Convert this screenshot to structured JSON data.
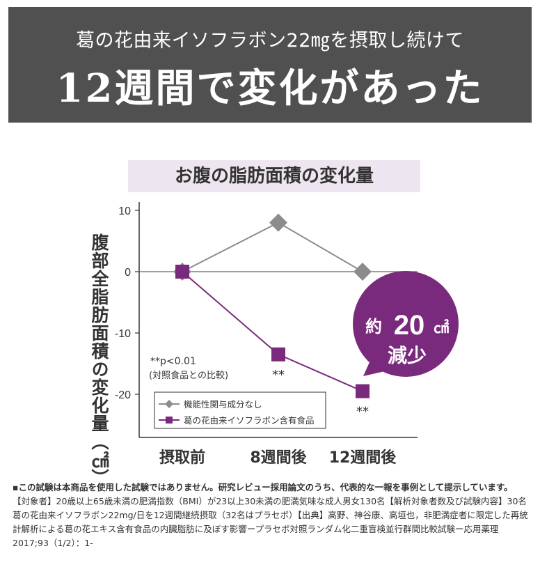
{
  "header": {
    "line1": "葛の花由来イソフラボン22㎎を摂取し続けて",
    "line2": "12週間で変化があった"
  },
  "chart_data": {
    "type": "line",
    "title": "お腹の脂肪面積の変化量",
    "ylabel": "腹部全脂肪面積の変化量（㎠）",
    "categories": [
      "摂取前",
      "8週間後",
      "12週間後"
    ],
    "ylim": [
      -27,
      10
    ],
    "yticks": [
      10,
      0,
      -10,
      -20
    ],
    "series": [
      {
        "name": "機能性関与成分なし",
        "values": [
          0,
          8,
          0
        ],
        "color": "#8c8c8c",
        "marker": "diamond"
      },
      {
        "name": "葛の花由来イソフラボン含有食品",
        "values": [
          0,
          -13.5,
          -19.5
        ],
        "color": "#7a2a7c",
        "marker": "square"
      }
    ],
    "significance": {
      "label": "**",
      "points": [
        1,
        2
      ]
    },
    "note": [
      "**p<0.01",
      "(対照食品との比較)"
    ],
    "callout": {
      "line1": "約",
      "value": "20",
      "unit": "㎠",
      "line2": "減少",
      "color": "#7a2a7c"
    },
    "grid": false,
    "legend_position": "bottom-left"
  },
  "footnote": {
    "lead": "▪この試験は本商品を使用した試験ではありません。研究レビュー採用論文のうち、代表的な一報を事例として提示しています。",
    "body": "【対象者】20歳以上65歳未満の肥満指数（BMI）が23以上30未満の肥満気味な成人男女130名【解析対象者数及び試験内容】30名葛の花由来イソフラボン22mg/日を12週間継続摂取（32名はプラセボ）【出典】高野、神谷康、高垣也，非肥満症者に限定した再統計解析による葛の花エキス含有食品の内臓脂肪に及ぼす影響ープラセボ対照ランダム化二重盲検並行群間比較試験ー応用薬理2017;93（1/2）：1-"
  }
}
